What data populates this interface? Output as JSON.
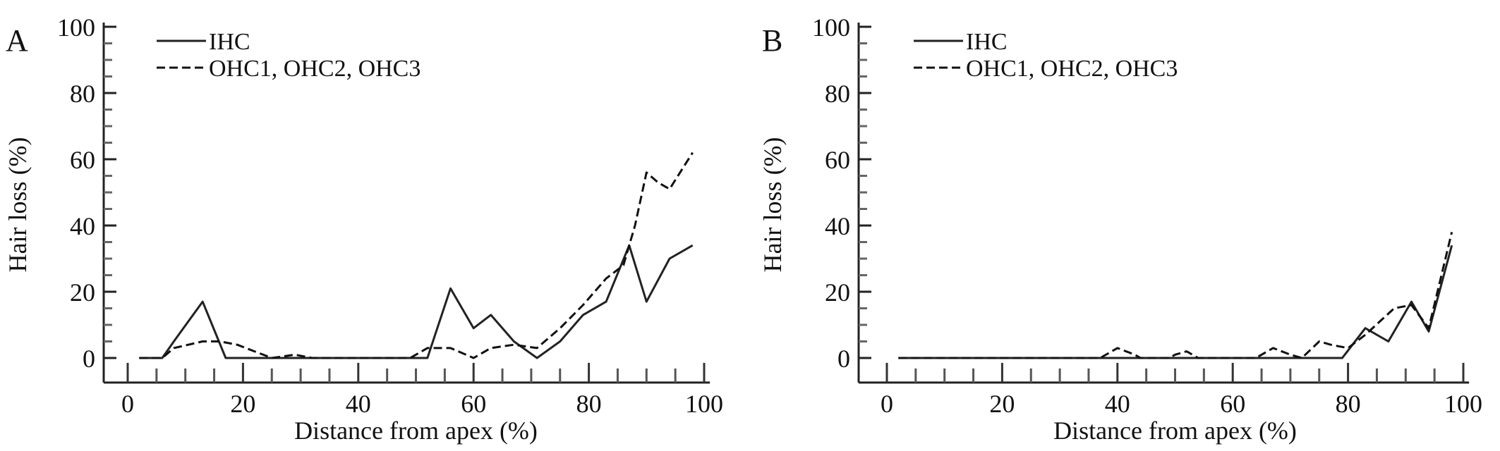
{
  "chart_data": [
    {
      "type": "line",
      "panel_label": "A",
      "xlabel": "Distance from apex (%)",
      "ylabel": "Hair loss (%)",
      "xlim": [
        0,
        100
      ],
      "ylim": [
        -7,
        100
      ],
      "xticks": [
        0,
        20,
        40,
        60,
        80,
        100
      ],
      "yticks": [
        0,
        20,
        40,
        60,
        80,
        100
      ],
      "grid": false,
      "legend": "top-left",
      "series": [
        {
          "name": "IHC",
          "style": "solid",
          "color": "#222222",
          "x": [
            2,
            6,
            8,
            13,
            17,
            52,
            56,
            60,
            63,
            67,
            71,
            75,
            79,
            83,
            87,
            90,
            94,
            98
          ],
          "y": [
            0,
            0,
            5,
            17,
            0,
            0,
            21,
            9,
            13,
            5,
            0,
            5,
            13,
            17,
            34,
            17,
            30,
            34
          ]
        },
        {
          "name": "OHC1, OHC2, OHC3",
          "style": "dashed",
          "color": "#111111",
          "x": [
            2,
            6,
            8,
            13,
            16,
            19,
            22,
            25,
            29,
            32,
            49,
            52,
            56,
            60,
            63,
            67,
            71,
            75,
            79,
            83,
            86,
            88,
            90,
            92,
            94,
            98
          ],
          "y": [
            0,
            0,
            3,
            5,
            5,
            4,
            2,
            0,
            1,
            0,
            0,
            3,
            3,
            0,
            3,
            4,
            3,
            9,
            16,
            24,
            28,
            40,
            56,
            53,
            51,
            62
          ]
        }
      ]
    },
    {
      "type": "line",
      "panel_label": "B",
      "xlabel": "Distance from apex (%)",
      "ylabel": "Hair loss (%)",
      "xlim": [
        0,
        100
      ],
      "ylim": [
        -7,
        100
      ],
      "xticks": [
        0,
        20,
        40,
        60,
        80,
        100
      ],
      "yticks": [
        0,
        20,
        40,
        60,
        80,
        100
      ],
      "grid": false,
      "legend": "top-left",
      "series": [
        {
          "name": "IHC",
          "style": "solid",
          "color": "#222222",
          "x": [
            2,
            79,
            83,
            87,
            91,
            94,
            98
          ],
          "y": [
            0,
            0,
            9,
            5,
            17,
            8,
            34
          ]
        },
        {
          "name": "OHC1, OHC2, OHC3",
          "style": "dashed",
          "color": "#111111",
          "x": [
            2,
            37,
            40,
            43,
            44,
            49,
            50,
            52,
            54,
            64,
            67,
            70,
            72,
            75,
            77,
            80,
            83,
            88,
            91,
            94,
            98
          ],
          "y": [
            0,
            0,
            3,
            1,
            0,
            0,
            1,
            2,
            0,
            0,
            3,
            1,
            0,
            5,
            4,
            3,
            7,
            15,
            16,
            9,
            38
          ]
        }
      ]
    }
  ]
}
